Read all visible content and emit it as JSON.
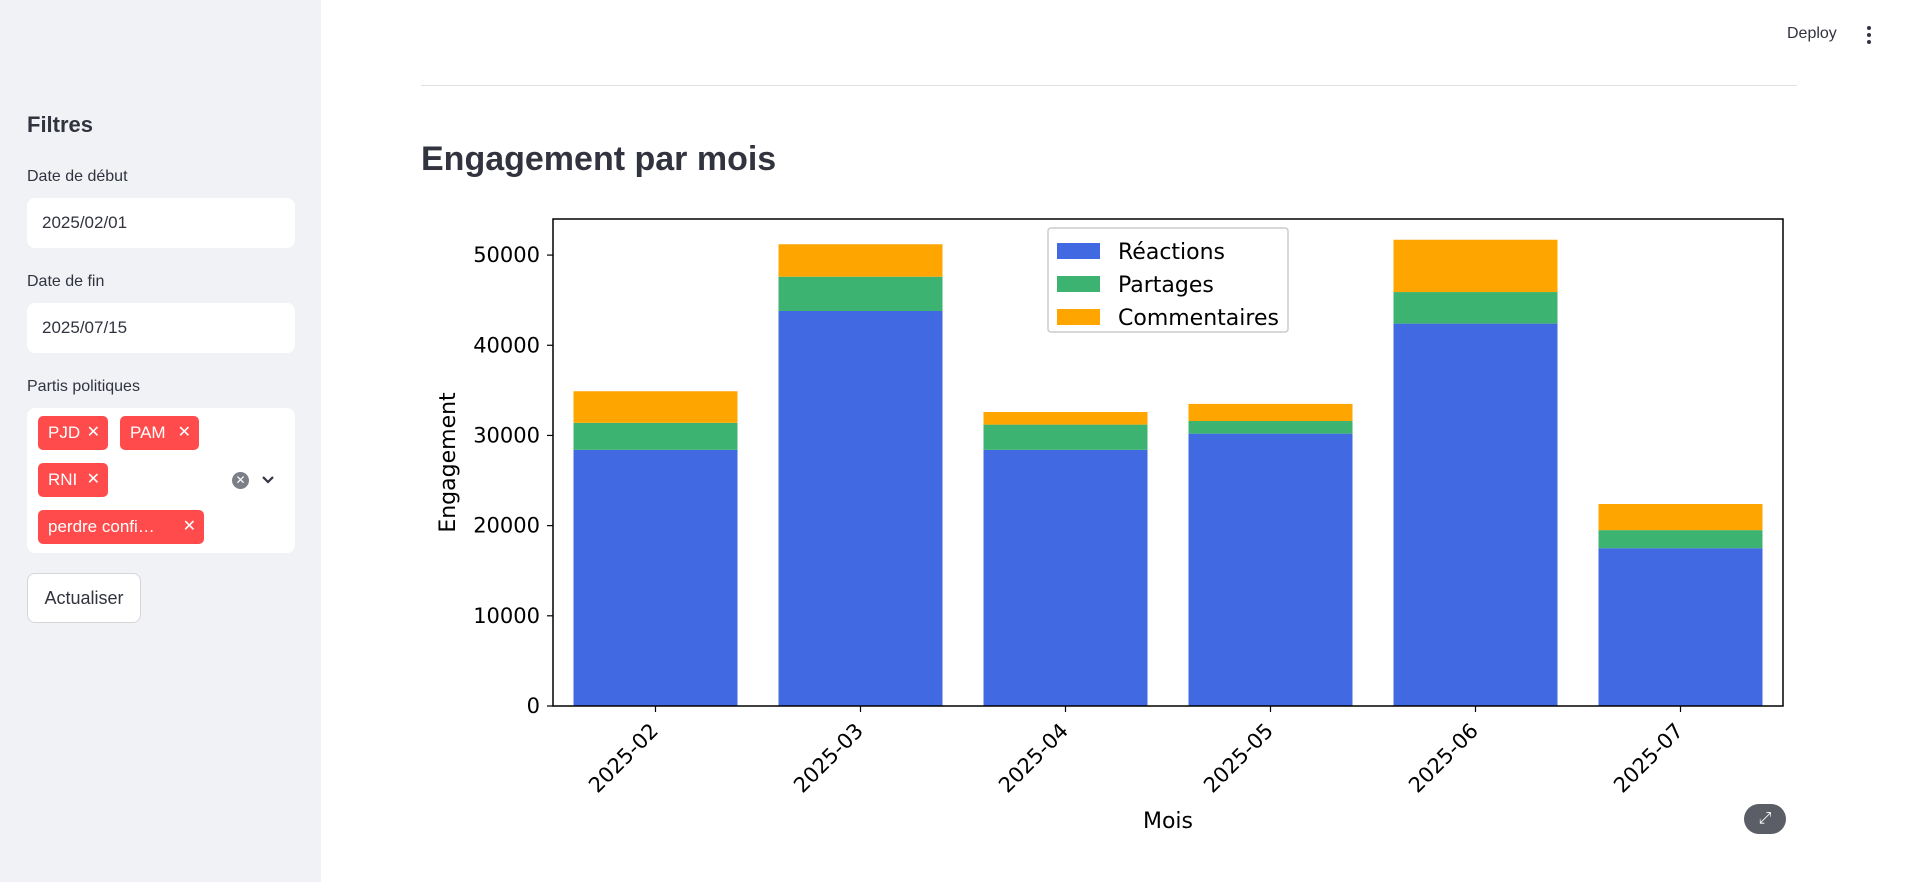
{
  "header": {
    "deploy_label": "Deploy"
  },
  "sidebar": {
    "title": "Filtres",
    "start_date": {
      "label": "Date de début",
      "value": "2025/02/01"
    },
    "end_date": {
      "label": "Date de fin",
      "value": "2025/07/15"
    },
    "parties": {
      "label": "Partis politiques",
      "tags": [
        "PJD",
        "PAM",
        "RNI",
        "perdre confi…"
      ]
    },
    "refresh_label": "Actualiser"
  },
  "main": {
    "heading": "Engagement par mois"
  },
  "colors": {
    "reactions": "#4169e1",
    "shares": "#3cb371",
    "comments": "#ffa500",
    "tag": "#ff4b4b"
  },
  "chart_data": {
    "type": "bar",
    "stacked": true,
    "categories": [
      "2025-02",
      "2025-03",
      "2025-04",
      "2025-05",
      "2025-06",
      "2025-07"
    ],
    "series": [
      {
        "name": "Réactions",
        "color": "#4169e1",
        "values": [
          28400,
          43800,
          28400,
          30200,
          42400,
          17500
        ]
      },
      {
        "name": "Partages",
        "color": "#3cb371",
        "values": [
          3000,
          3800,
          2800,
          1400,
          3500,
          2000
        ]
      },
      {
        "name": "Commentaires",
        "color": "#ffa500",
        "values": [
          3500,
          3600,
          1400,
          1900,
          5800,
          2900
        ]
      }
    ],
    "xlabel": "Mois",
    "ylabel": "Engagement",
    "ylim": [
      0,
      54000
    ],
    "yticks": [
      0,
      10000,
      20000,
      30000,
      40000,
      50000
    ],
    "legend": "upper center",
    "grid": false
  }
}
